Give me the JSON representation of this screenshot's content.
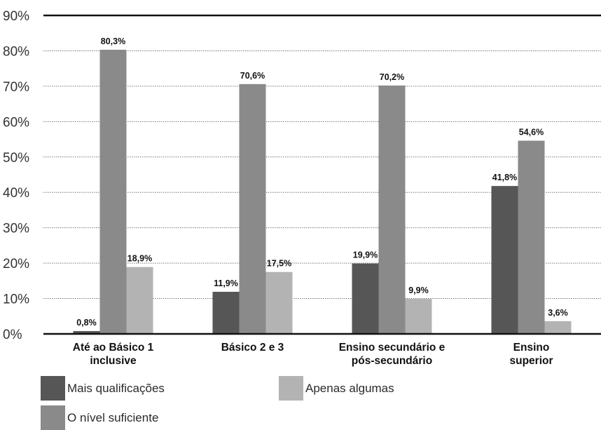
{
  "chart_data": {
    "type": "bar",
    "categories": [
      [
        "Até ao Básico 1",
        "inclusive"
      ],
      [
        "Básico 2 e 3"
      ],
      [
        "Ensino secundário e",
        "pós-secundário"
      ],
      [
        "Ensino",
        "superior"
      ]
    ],
    "series": [
      {
        "name": "Mais qualificações",
        "color": "#565656",
        "values": [
          0.8,
          11.9,
          19.9,
          41.8
        ],
        "labels": [
          "0,8%",
          "11,9%",
          "19,9%",
          "41,8%"
        ]
      },
      {
        "name": "O nível suficiente",
        "color": "#8a8a8a",
        "values": [
          80.3,
          70.6,
          70.2,
          54.6
        ],
        "labels": [
          "80,3%",
          "70,6%",
          "70,2%",
          "54,6%"
        ]
      },
      {
        "name": "Apenas algumas",
        "color": "#b3b3b3",
        "values": [
          18.9,
          17.5,
          9.9,
          3.6
        ],
        "labels": [
          "18,9%",
          "17,5%",
          "9,9%",
          "3,6%"
        ]
      }
    ],
    "ylim": [
      0,
      90
    ],
    "yticks": [
      "0%",
      "10%",
      "20%",
      "30%",
      "40%",
      "50%",
      "60%",
      "70%",
      "80%",
      "90%"
    ],
    "grid": true,
    "legend_placement": "bottom-left"
  }
}
